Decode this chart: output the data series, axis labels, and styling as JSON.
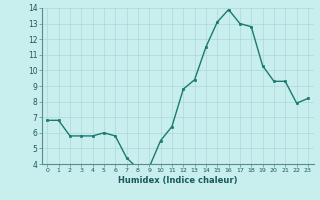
{
  "x": [
    0,
    1,
    2,
    3,
    4,
    5,
    6,
    7,
    8,
    9,
    10,
    11,
    12,
    13,
    14,
    15,
    16,
    17,
    18,
    19,
    20,
    21,
    22,
    23
  ],
  "y": [
    6.8,
    6.8,
    5.8,
    5.8,
    5.8,
    6.0,
    5.8,
    4.4,
    3.7,
    3.8,
    5.5,
    6.4,
    8.8,
    9.4,
    11.5,
    13.1,
    13.9,
    13.0,
    12.8,
    10.3,
    9.3,
    9.3,
    7.9,
    8.2
  ],
  "xlabel": "Humidex (Indice chaleur)",
  "ylim": [
    4,
    14
  ],
  "xlim": [
    -0.5,
    23.5
  ],
  "yticks": [
    4,
    5,
    6,
    7,
    8,
    9,
    10,
    11,
    12,
    13,
    14
  ],
  "xticks": [
    0,
    1,
    2,
    3,
    4,
    5,
    6,
    7,
    8,
    9,
    10,
    11,
    12,
    13,
    14,
    15,
    16,
    17,
    18,
    19,
    20,
    21,
    22,
    23
  ],
  "line_color": "#1a7a6e",
  "marker_color": "#1a7a6e",
  "bg_color": "#c8eeee",
  "grid_color": "#b0d8d8"
}
